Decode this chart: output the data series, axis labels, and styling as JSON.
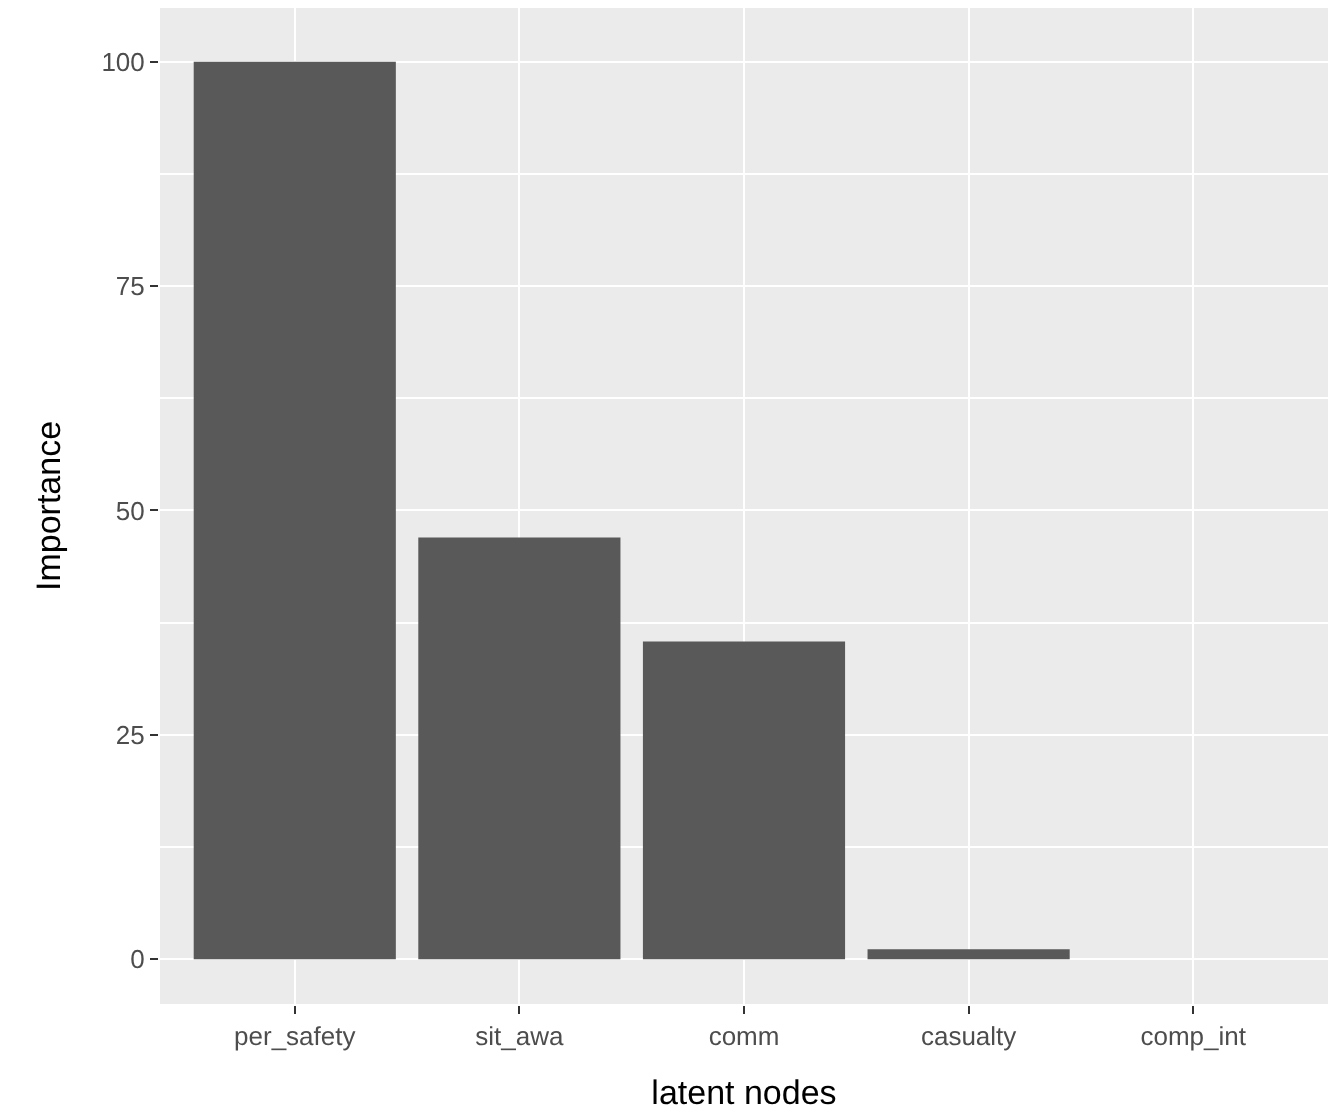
{
  "chart_data": {
    "type": "bar",
    "xlabel": "latent nodes",
    "ylabel": "Importance",
    "categories": [
      "per_safety",
      "sit_awa",
      "comm",
      "casualty",
      "comp_int"
    ],
    "values": [
      100,
      47.0,
      35.4,
      1.1,
      0
    ],
    "color": "#595959",
    "ylim": [
      -5,
      106
    ],
    "yticks": [
      0,
      25,
      50,
      75,
      100
    ],
    "grid": true,
    "legend": false
  }
}
